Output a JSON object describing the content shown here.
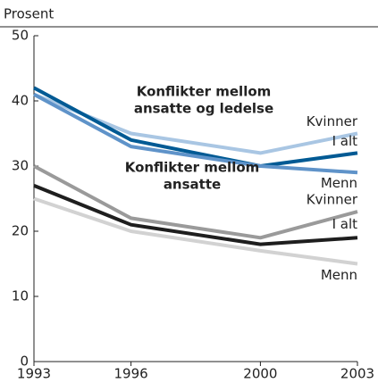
{
  "chart_data": {
    "type": "line",
    "y_label": "Prosent",
    "annotations": [
      {
        "lines": [
          "Konflikter mellom",
          "ansatte og ledelse"
        ]
      },
      {
        "lines": [
          "Konflikter mellom",
          "ansatte"
        ]
      }
    ],
    "x": [
      1993,
      1996,
      2000,
      2003
    ],
    "xlim": [
      1993,
      2003
    ],
    "xticks": [
      1993,
      1996,
      2000,
      2003
    ],
    "ylim": [
      0,
      50
    ],
    "yticks": [
      0,
      10,
      20,
      30,
      40,
      50
    ],
    "series": [
      {
        "name": "Kvinner",
        "color": "#a9c6e3",
        "values": [
          41,
          35,
          32,
          35
        ]
      },
      {
        "name": "I alt",
        "color": "#005a94",
        "values": [
          42,
          34,
          30,
          32
        ]
      },
      {
        "name": "Menn",
        "color": "#5f93c9",
        "values": [
          41,
          33,
          30,
          29
        ]
      },
      {
        "name": "Kvinner",
        "color": "#9a9a9a",
        "values": [
          30,
          22,
          19,
          23
        ]
      },
      {
        "name": "I alt",
        "color": "#1e1e1e",
        "values": [
          27,
          21,
          18,
          19
        ]
      },
      {
        "name": "Menn",
        "color": "#d2d2d2",
        "values": [
          25,
          20,
          17,
          15
        ]
      }
    ]
  }
}
